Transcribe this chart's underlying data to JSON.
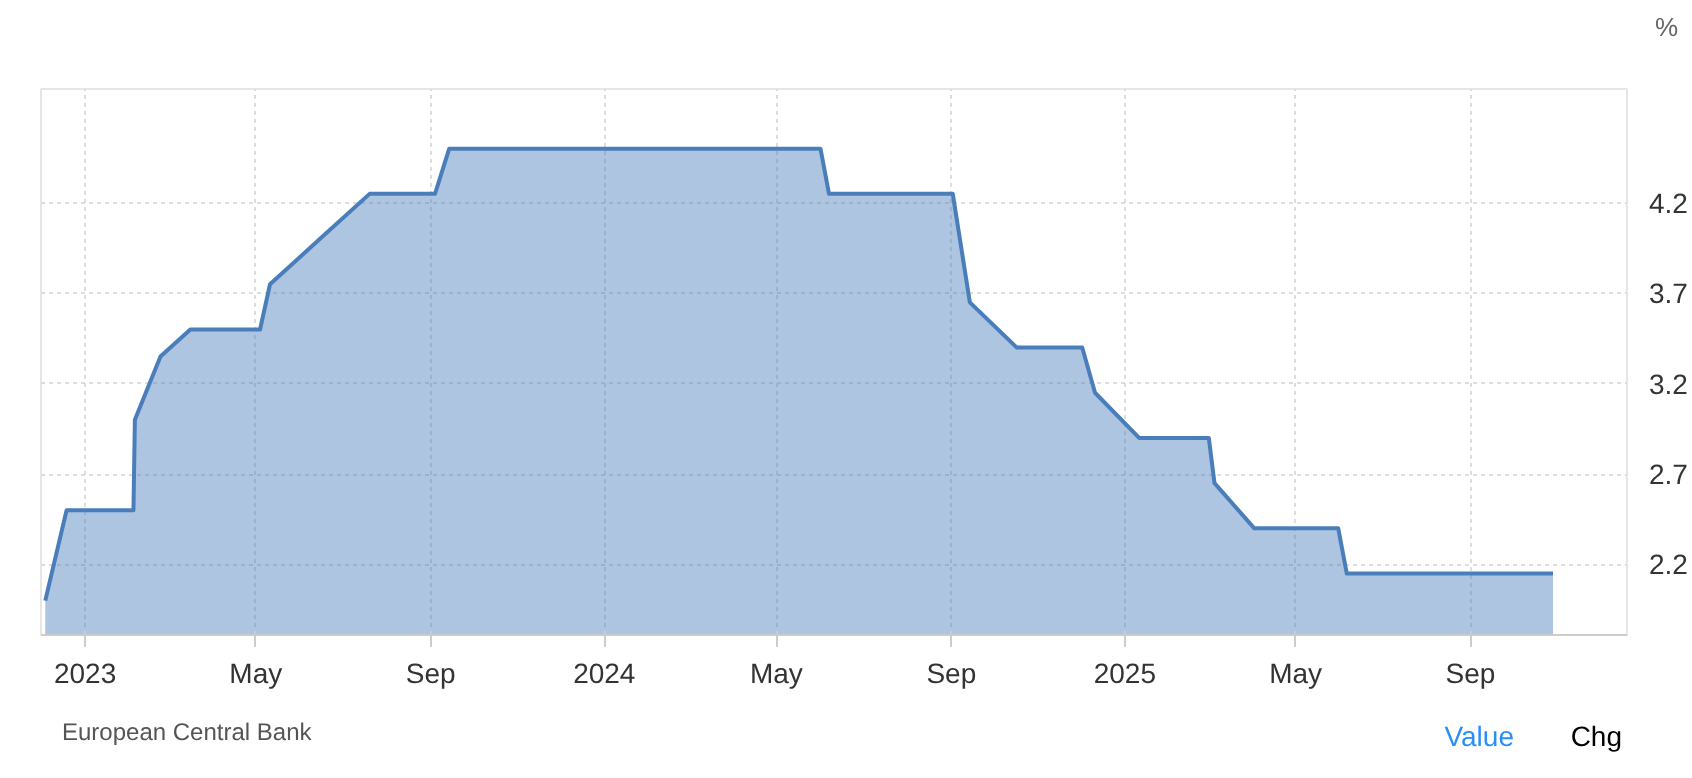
{
  "chart_data": {
    "type": "area",
    "ylabel": "%",
    "color": "#4a7ebb",
    "x": [
      "2022-12-04",
      "2022-12-19",
      "2023-02-04",
      "2023-02-05",
      "2023-02-23",
      "2023-03-16",
      "2023-05-04",
      "2023-05-11",
      "2023-06-15",
      "2023-07-20",
      "2023-09-04",
      "2023-09-14",
      "2024-06-01",
      "2024-06-07",
      "2024-09-02",
      "2024-09-14",
      "2024-10-17",
      "2024-12-02",
      "2024-12-11",
      "2025-01-11",
      "2025-03-01",
      "2025-03-05",
      "2025-04-02",
      "2025-05-31",
      "2025-06-06",
      "2025-10-29"
    ],
    "values": [
      2.0,
      2.5,
      2.5,
      3.0,
      3.35,
      3.5,
      3.5,
      3.75,
      4.0,
      4.25,
      4.25,
      4.5,
      4.5,
      4.25,
      4.25,
      3.65,
      3.4,
      3.4,
      3.15,
      2.9,
      2.9,
      2.65,
      2.4,
      2.4,
      2.15,
      2.15
    ],
    "xlim": [
      "2022-12-01",
      "2025-12-20"
    ],
    "xticks": [
      {
        "value": "2023-01-01",
        "label": "2023"
      },
      {
        "value": "2023-05-01",
        "label": "May"
      },
      {
        "value": "2023-09-01",
        "label": "Sep"
      },
      {
        "value": "2024-01-01",
        "label": "2024"
      },
      {
        "value": "2024-05-01",
        "label": "May"
      },
      {
        "value": "2024-09-01",
        "label": "Sep"
      },
      {
        "value": "2025-01-01",
        "label": "2025"
      },
      {
        "value": "2025-05-01",
        "label": "May"
      },
      {
        "value": "2025-09-01",
        "label": "Sep"
      }
    ],
    "ylim": [
      1.81,
      4.83
    ],
    "yticks": [
      2.2,
      2.7,
      3.2,
      3.7,
      4.2
    ],
    "grid": true,
    "line_style": "solid",
    "marker": "none",
    "annotations": [
      "European Central Bank",
      "Value",
      "Chg"
    ]
  }
}
